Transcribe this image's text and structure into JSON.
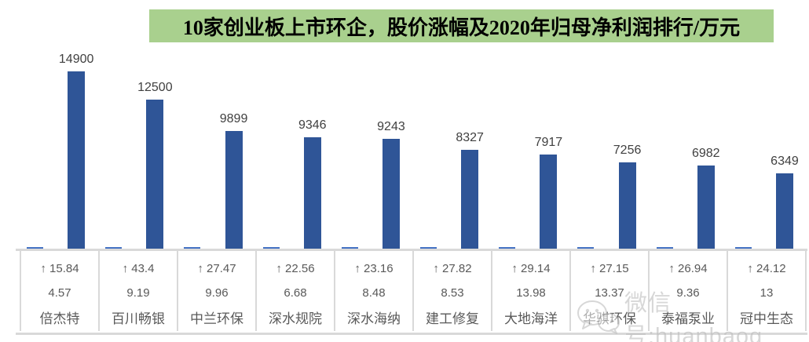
{
  "title": {
    "text": "10家创业板上市环企，股价涨幅及2020年归母净利润排行/万元"
  },
  "chart_data": {
    "type": "bar",
    "title": "10家创业板上市环企，股价涨幅及2020年归母净利润排行/万元",
    "categories": [
      "倍杰特",
      "百川畅银",
      "中兰环保",
      "深水规院",
      "深水海纳",
      "建工修复",
      "大地海洋",
      "华骐环保",
      "泰福泵业",
      "冠中生态"
    ],
    "series": [
      {
        "key": "price_change_pct",
        "values": [
          15.84,
          43.4,
          27.47,
          22.56,
          23.16,
          27.82,
          29.14,
          27.15,
          26.94,
          24.12
        ]
      },
      {
        "key": "table_row2_value",
        "values": [
          4.57,
          9.19,
          9.96,
          6.68,
          8.48,
          8.53,
          13.98,
          13.37,
          9.36,
          13
        ]
      },
      {
        "key": "net_profit_2020_wanyuan",
        "values": [
          14900,
          12500,
          9899,
          9346,
          9243,
          8327,
          7917,
          7256,
          6982,
          6349
        ]
      }
    ],
    "data_labels": [
      14900,
      12500,
      9899,
      9346,
      9243,
      8327,
      7917,
      7256,
      6982,
      6349
    ],
    "ylim": [
      0,
      16000
    ],
    "grid": false,
    "legend": "none",
    "data_table_shown": true
  },
  "table": {
    "rows": [
      [
        "↑ 15.84",
        "↑ 43.4",
        "↑ 27.47",
        "↑ 22.56",
        "↑ 23.16",
        "↑ 27.82",
        "↑ 29.14",
        "↑ 27.15",
        "↑ 26.94",
        "↑ 24.12"
      ],
      [
        "4.57",
        "9.19",
        "9.96",
        "6.68",
        "8.48",
        "8.53",
        "13.98",
        "13.37",
        "9.36",
        "13"
      ],
      [
        "倍杰特",
        "百川畅银",
        "中兰环保",
        "深水规院",
        "深水海纳",
        "建工修复",
        "大地海洋",
        "华骐环保",
        "泰福泵业",
        "冠中生态"
      ]
    ]
  },
  "watermark": {
    "text": "微信号:huanbaog",
    "icon": "wechat-icon"
  },
  "colors": {
    "title_bg": "#A9D08E",
    "bar_primary": "#2F5597",
    "bar_secondary": "#4472C4",
    "axis_line": "#D9D9D9",
    "label_text": "#404040",
    "table_text": "#595959",
    "watermark": "#BDBDBD"
  }
}
